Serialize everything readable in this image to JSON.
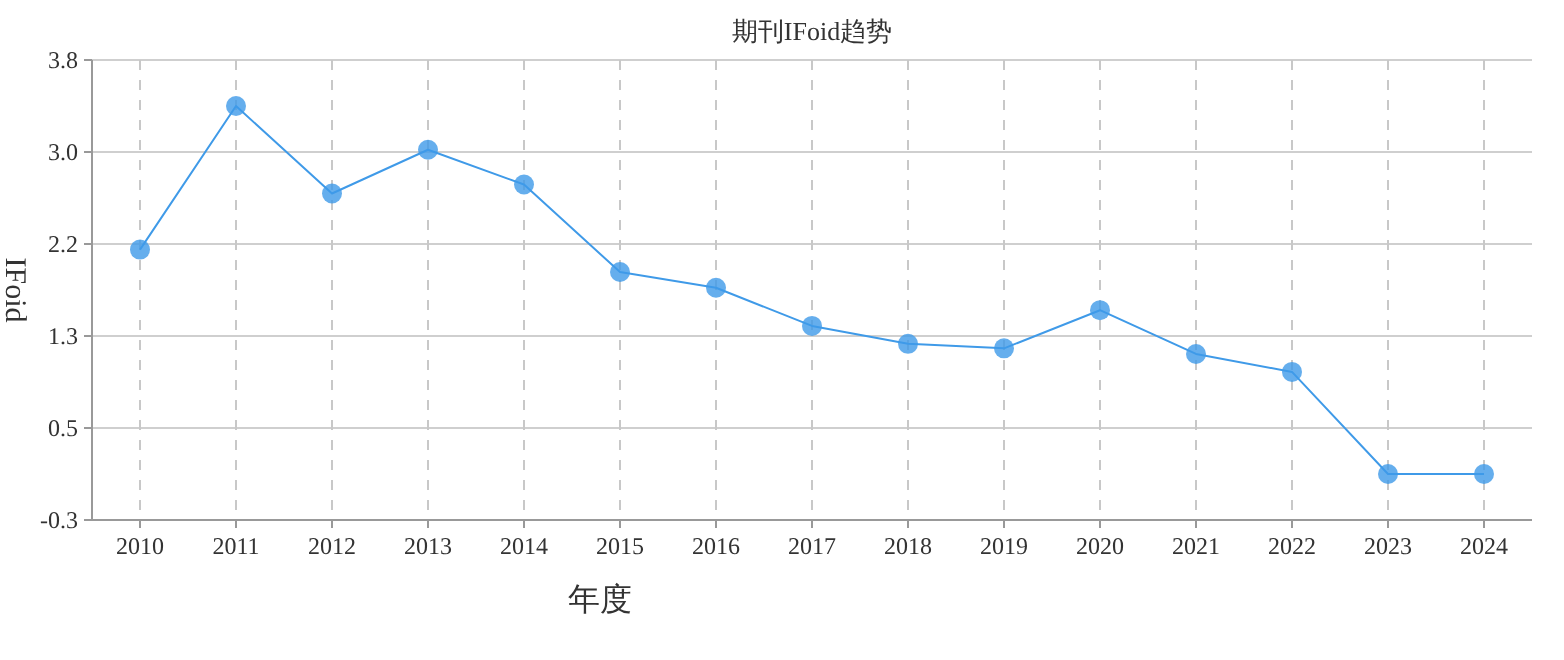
{
  "chart_data": {
    "type": "line",
    "title": "期刊IFoid趋势",
    "xlabel": "年度",
    "ylabel": "IFoid",
    "categories": [
      "2010",
      "2011",
      "2012",
      "2013",
      "2014",
      "2015",
      "2016",
      "2017",
      "2018",
      "2019",
      "2020",
      "2021",
      "2022",
      "2023",
      "2024"
    ],
    "series": [
      {
        "color": "#3f9ae8",
        "values": [
          2.11,
          3.39,
          2.61,
          3.0,
          2.69,
          1.91,
          1.77,
          1.43,
          1.27,
          1.23,
          1.57,
          1.18,
          1.02,
          0.11,
          0.11
        ]
      }
    ],
    "ylim": [
      -0.3,
      3.8
    ],
    "yticks": [
      {
        "value": -0.3,
        "label": "-0.3"
      },
      {
        "value": 0.52,
        "label": "0.5"
      },
      {
        "value": 1.34,
        "label": "1.3"
      },
      {
        "value": 2.16,
        "label": "2.2"
      },
      {
        "value": 2.98,
        "label": "3.0"
      },
      {
        "value": 3.8,
        "label": "3.8"
      }
    ],
    "grid": true,
    "marker": "circle",
    "line_style": "solid"
  }
}
